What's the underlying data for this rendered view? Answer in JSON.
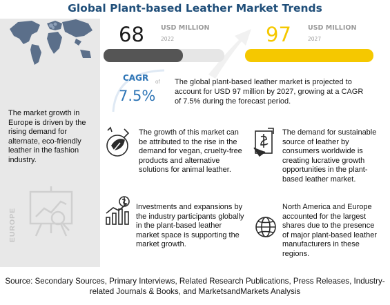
{
  "title": "Global Plant-based Leather Market Trends",
  "left_panel": {
    "text": "The market growth in Europe is driven by the rising demand for alternate, eco-friendly leather in the fashion industry.",
    "region_label": "EUROPE"
  },
  "market_2022": {
    "value": "68",
    "unit": "USD MILLION",
    "year": "2022",
    "bar_color": "#555555"
  },
  "market_2027": {
    "value": "97",
    "unit": "USD MILLION",
    "year": "2027",
    "bar_color": "#f5c800"
  },
  "cagr": {
    "label": "CAGR",
    "of_text": "of",
    "value": "7.5%"
  },
  "projection": "The global plant-based leather market is projected to account for USD 97 million by 2027, growing at a CAGR of 7.5% during the forecast period.",
  "findings": [
    {
      "icon": "vegan-leaf-icon",
      "text": "The growth of this market can be attributed to the rise in the demand for vegan, cruelty-free products and alternative solutions for animal leather."
    },
    {
      "icon": "sustainable-money-icon",
      "text": "The demand for sustainable source of leather by consumers worldwide is creating lucrative growth opportunities in the plant-based leather market."
    },
    {
      "icon": "investment-chart-icon",
      "text": "Investments and expansions by the industry participants globally in the plant-based leather market space is supporting the market growth."
    },
    {
      "icon": "globe-icon",
      "text": "North America and Europe accounted for the largest shares due to the presence of major plant-based leather manufacturers in these regions."
    }
  ],
  "source": "Source: Secondary Sources, Primary Interviews, Related Research Publications, Press Releases, Industry-related Journals & Books, and MarketsandMarkets Analysis",
  "colors": {
    "title": "#1f4e79",
    "accent_blue": "#2e75b6",
    "yellow": "#f5c800",
    "dark_bar": "#555555",
    "panel": "#e8e8e8"
  }
}
